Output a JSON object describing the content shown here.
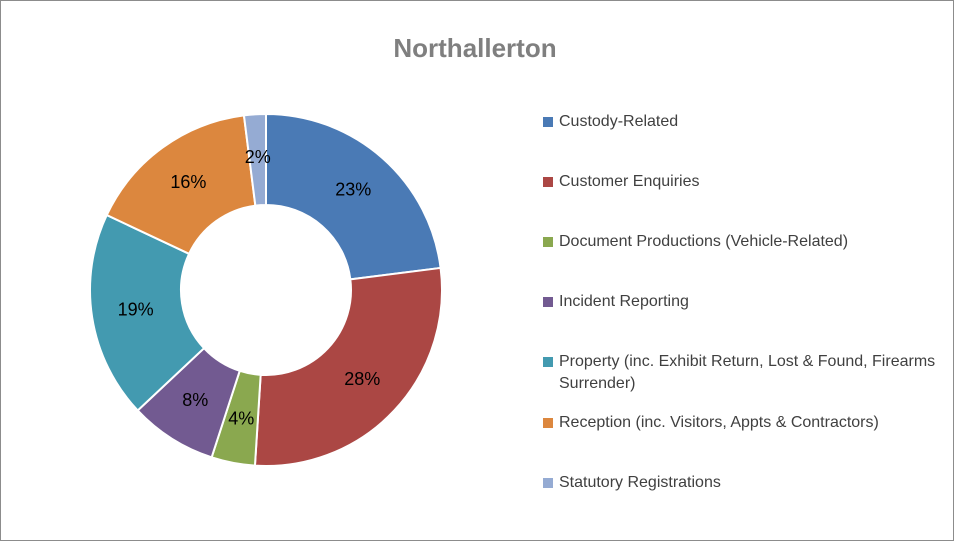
{
  "chart_data": {
    "type": "donut",
    "title": "Northallerton",
    "categories": [
      "Custody-Related",
      "Customer Enquiries",
      "Document Productions (Vehicle-Related)",
      "Incident Reporting",
      "Property (inc. Exhibit Return, Lost & Found, Firearms Surrender)",
      "Reception (inc. Visitors, Appts & Contractors)",
      "Statutory Registrations"
    ],
    "values": [
      23,
      28,
      4,
      8,
      19,
      16,
      2
    ],
    "value_labels": [
      "23%",
      "28%",
      "4%",
      "8%",
      "19%",
      "16%",
      "2%"
    ],
    "colors": [
      "#4a7ab5",
      "#ab4744",
      "#8aa84f",
      "#725a91",
      "#439ab0",
      "#dc873e",
      "#95abd3"
    ],
    "legend": "right"
  }
}
